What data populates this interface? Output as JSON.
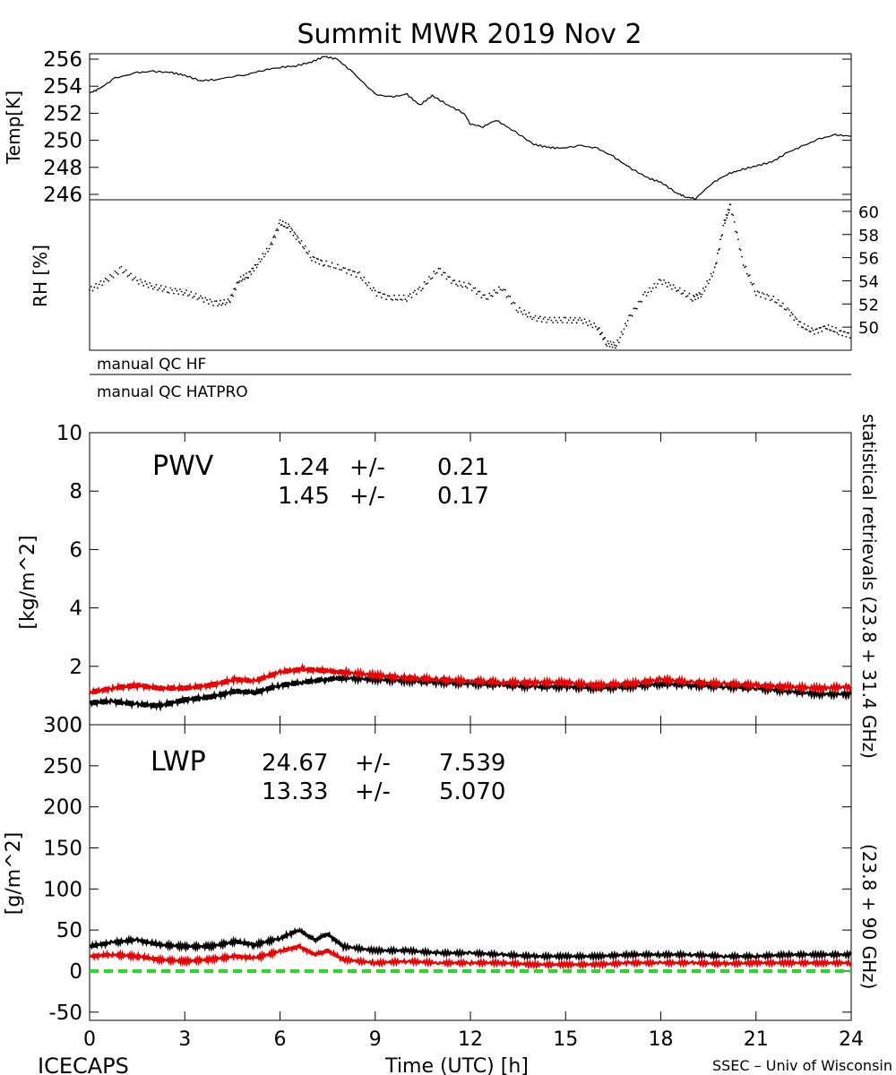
{
  "title": "Summit MWR 2019 Nov  2",
  "footer": {
    "left": "ICECAPS",
    "right": "SSEC – Univ of Wisconsin"
  },
  "qc_labels": [
    "manual  QC  HF",
    "manual  QC  HATPRO"
  ],
  "side_labels": {
    "black": "statistical  retrievals  (23.8  +  31.4  GHz)",
    "red": "(23.8  +  90  GHz)"
  },
  "colors": {
    "black": "#000000",
    "red": "#ee0000",
    "green": "#22dd22"
  },
  "pwv_stats": {
    "label": "PWV",
    "black": {
      "mean": "1.24",
      "pm": "+/-",
      "std": "0.21"
    },
    "red": {
      "mean": "1.45",
      "pm": "+/-",
      "std": "0.17"
    }
  },
  "lwp_stats": {
    "label": "LWP",
    "black": {
      "mean": "24.67",
      "pm": "+/-",
      "std": "7.539"
    },
    "red": {
      "mean": "13.33",
      "pm": "+/-",
      "std": "5.070"
    }
  },
  "chart_data": [
    {
      "type": "line",
      "panel": "temp",
      "ylabel": "Temp[K]",
      "xlim": [
        0,
        24
      ],
      "ylim": [
        245.6,
        256.4
      ],
      "yticks": [
        246,
        248,
        250,
        252,
        254,
        256
      ],
      "series": [
        {
          "color": "black",
          "x": [
            0,
            0.3,
            0.8,
            1.5,
            2,
            2.6,
            3,
            3.5,
            4,
            5,
            5.5,
            6,
            6.5,
            7,
            7.4,
            7.8,
            8.3,
            9,
            9.5,
            10,
            10.4,
            10.8,
            11.3,
            11.8,
            12,
            12.4,
            12.8,
            13.3,
            14,
            14.4,
            14.8,
            15.5,
            16,
            16.5,
            17,
            17.6,
            18,
            18.5,
            18.8,
            19.1,
            19.6,
            20.1,
            20.5,
            21,
            21.5,
            22,
            22.5,
            23,
            23.5,
            24
          ],
          "y": [
            253.5,
            253.8,
            254.6,
            255,
            255.1,
            255,
            254.8,
            254.4,
            254.5,
            254.9,
            255.2,
            255.4,
            255.5,
            255.8,
            256.2,
            256,
            255,
            253.4,
            253.2,
            253.4,
            252.6,
            253.3,
            252.6,
            252,
            251.2,
            251,
            251.5,
            250.8,
            249.7,
            249.5,
            249.4,
            249.6,
            249.4,
            248.8,
            248,
            247.2,
            246.9,
            246.1,
            245.8,
            245.7,
            246.8,
            247.5,
            247.8,
            248.1,
            248.4,
            249.1,
            249.6,
            250.1,
            250.4,
            250.3
          ]
        }
      ]
    },
    {
      "type": "scatter",
      "panel": "rh",
      "ylabel": "RH  [%]",
      "xlim": [
        0,
        24
      ],
      "ylim": [
        48,
        61
      ],
      "yticks": [
        50,
        52,
        54,
        56,
        58,
        60
      ],
      "series": [
        {
          "color": "black",
          "x": [
            0,
            0.5,
            1,
            1.5,
            2,
            2.5,
            3,
            3.5,
            4,
            4.4,
            4.7,
            5,
            5.3,
            5.7,
            6,
            6.3,
            6.6,
            7,
            7.4,
            8,
            8.5,
            9,
            9.5,
            10,
            10.5,
            11,
            11.5,
            12,
            12.5,
            13,
            13.5,
            14,
            14.5,
            15,
            15.5,
            16,
            16.3,
            16.6,
            17,
            17.5,
            18,
            18.5,
            19,
            19.3,
            19.7,
            20,
            20.2,
            20.6,
            21,
            21.5,
            22,
            22.4,
            22.8,
            23.2,
            23.6,
            24
          ],
          "y": [
            53.2,
            54,
            55,
            54,
            53.5,
            53.2,
            53,
            52.5,
            52,
            52.2,
            54,
            54.5,
            55.5,
            57,
            59,
            58.6,
            57.5,
            56,
            55.5,
            55,
            54.5,
            53,
            52.5,
            52.5,
            53.5,
            55,
            53.8,
            53.5,
            52.5,
            53.4,
            51.5,
            50.8,
            50.6,
            50.6,
            50.6,
            50,
            48.6,
            48.4,
            50.8,
            52.8,
            54,
            53.3,
            52.5,
            52.9,
            55,
            59,
            60.5,
            55.5,
            53,
            52.5,
            51.5,
            50.2,
            49.6,
            50,
            49.6,
            49.3
          ]
        }
      ]
    },
    {
      "type": "line",
      "panel": "pwv",
      "ylabel": "[kg/m^2]",
      "xlim": [
        0,
        24
      ],
      "xticks": [
        0,
        3,
        6,
        9,
        12,
        15,
        18,
        21,
        24
      ],
      "ylim": [
        0,
        10
      ],
      "yticks": [
        0,
        2,
        4,
        6,
        8,
        10
      ],
      "series": [
        {
          "color": "black",
          "x": [
            0,
            0.7,
            1.5,
            2.2,
            3,
            3.8,
            4.6,
            5.2,
            6,
            6.7,
            7.4,
            8,
            9,
            10,
            11,
            12,
            13,
            14,
            15,
            16,
            17,
            18,
            19,
            20,
            21,
            22,
            23,
            24
          ],
          "y": [
            0.75,
            0.8,
            0.7,
            0.65,
            0.85,
            0.95,
            1.15,
            1.1,
            1.35,
            1.45,
            1.55,
            1.6,
            1.55,
            1.5,
            1.45,
            1.4,
            1.35,
            1.3,
            1.3,
            1.25,
            1.3,
            1.4,
            1.35,
            1.3,
            1.25,
            1.15,
            1.05,
            1.05
          ]
        },
        {
          "color": "red",
          "x": [
            0,
            0.7,
            1.5,
            2.2,
            3,
            3.8,
            4.6,
            5.2,
            6,
            6.7,
            7.4,
            8,
            9,
            10,
            11,
            12,
            13,
            14,
            15,
            16,
            17,
            18,
            19,
            20,
            21,
            22,
            23,
            24
          ],
          "y": [
            1.1,
            1.25,
            1.35,
            1.25,
            1.25,
            1.35,
            1.55,
            1.5,
            1.8,
            1.9,
            1.85,
            1.8,
            1.7,
            1.6,
            1.55,
            1.5,
            1.45,
            1.45,
            1.45,
            1.35,
            1.4,
            1.55,
            1.45,
            1.4,
            1.35,
            1.3,
            1.25,
            1.3
          ]
        }
      ]
    },
    {
      "type": "line",
      "panel": "lwp",
      "ylabel": "[g/m^2]",
      "xlabel": "Time  (UTC)  [h]",
      "xlim": [
        0,
        24
      ],
      "xticks": [
        0,
        3,
        6,
        9,
        12,
        15,
        18,
        21,
        24
      ],
      "ylim": [
        -60,
        300
      ],
      "yticks": [
        -50,
        0,
        50,
        100,
        150,
        200,
        250,
        300
      ],
      "series": [
        {
          "color": "black",
          "x": [
            0,
            0.7,
            1.5,
            2.2,
            3,
            3.8,
            4.6,
            5.2,
            6,
            6.6,
            7.1,
            7.5,
            8,
            9,
            10,
            11,
            12,
            13,
            14,
            15,
            16,
            17,
            18,
            19,
            20,
            21,
            22,
            23,
            24
          ],
          "y": [
            30,
            35,
            38,
            32,
            30,
            30,
            36,
            32,
            40,
            50,
            38,
            45,
            30,
            25,
            25,
            22,
            22,
            20,
            18,
            18,
            18,
            20,
            20,
            20,
            18,
            18,
            20,
            20,
            20
          ]
        },
        {
          "color": "red",
          "x": [
            0,
            0.7,
            1.5,
            2.2,
            3,
            3.8,
            4.6,
            5.2,
            6,
            6.6,
            7.1,
            7.5,
            8,
            9,
            10,
            11,
            12,
            13,
            14,
            15,
            16,
            17,
            18,
            19,
            20,
            21,
            22,
            23,
            24
          ],
          "y": [
            18,
            20,
            18,
            14,
            12,
            14,
            18,
            16,
            24,
            30,
            20,
            25,
            14,
            10,
            12,
            10,
            10,
            10,
            8,
            8,
            8,
            10,
            10,
            10,
            9,
            10,
            10,
            10,
            10
          ]
        },
        {
          "color": "green",
          "style": "dashed",
          "x": [
            0,
            24
          ],
          "y": [
            0,
            0
          ]
        }
      ]
    }
  ]
}
